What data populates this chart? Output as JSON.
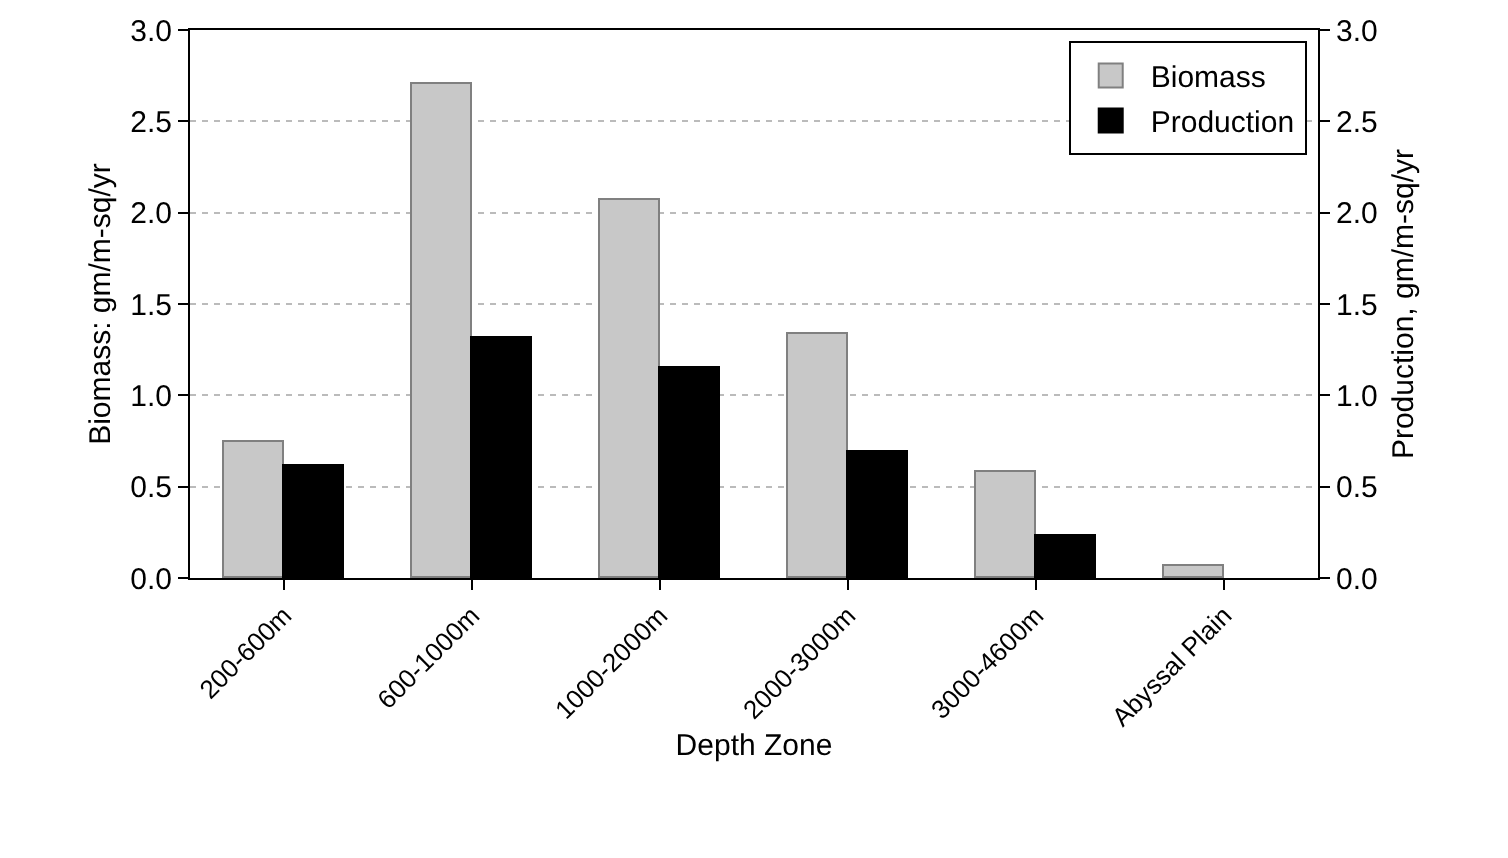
{
  "chart_data": {
    "type": "bar",
    "xlabel": "Depth Zone",
    "ylabel": "Biomass: gm/m-sq/yr",
    "y2label": "Production, gm/m-sq/yr",
    "categories": [
      "200-600m",
      "600-1000m",
      "1000-2000m",
      "2000-3000m",
      "3000-4600m",
      "Abyssal Plain"
    ],
    "series": [
      {
        "name": "Biomass",
        "color": "#c8c8c8",
        "values": [
          0.74,
          2.7,
          2.07,
          1.34,
          0.58,
          0.07
        ]
      },
      {
        "name": "Production",
        "color": "#000000",
        "axis": "y2",
        "values": [
          0.61,
          1.31,
          1.15,
          0.69,
          0.23,
          null
        ]
      }
    ],
    "ylim": [
      0,
      3
    ],
    "yticks": [
      {
        "value": 0,
        "label": "0.0"
      },
      {
        "value": 0.5,
        "label": "0.5"
      },
      {
        "value": 1,
        "label": "1.0"
      },
      {
        "value": 1.5,
        "label": "1.5"
      },
      {
        "value": 2,
        "label": "2.0"
      },
      {
        "value": 2.5,
        "label": "2.5"
      },
      {
        "value": 3,
        "label": "3.0"
      }
    ],
    "y2lim": [
      0,
      3
    ],
    "y2ticks": [
      {
        "value": 0,
        "label": "0.0"
      },
      {
        "value": 0.5,
        "label": "0.5"
      },
      {
        "value": 1,
        "label": "1.0"
      },
      {
        "value": 1.5,
        "label": "1.5"
      },
      {
        "value": 2,
        "label": "2.0"
      },
      {
        "value": 2.5,
        "label": "2.5"
      },
      {
        "value": 3,
        "label": "3.0"
      }
    ],
    "grid": "y",
    "legend": "top right"
  }
}
